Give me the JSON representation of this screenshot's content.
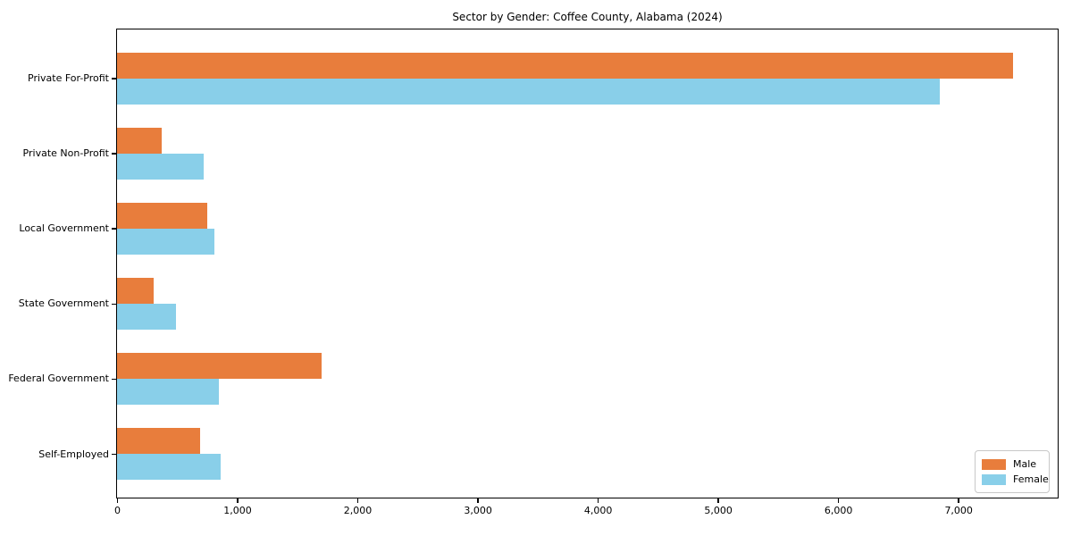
{
  "title": "Sector by Gender: Coffee County, Alabama (2024)",
  "chart_data": {
    "type": "bar",
    "orientation": "horizontal",
    "title": "Sector by Gender: Coffee County, Alabama (2024)",
    "categories": [
      "Private For-Profit",
      "Private Non-Profit",
      "Local Government",
      "State Government",
      "Federal Government",
      "Self-Employed"
    ],
    "series": [
      {
        "name": "Male",
        "color": "#e87d3c",
        "values": [
          7455,
          370,
          750,
          305,
          1700,
          690
        ]
      },
      {
        "name": "Female",
        "color": "#89cfe9",
        "values": [
          6845,
          720,
          810,
          490,
          850,
          860
        ]
      }
    ],
    "xlim": [
      0,
      7820
    ],
    "xticks": [
      0,
      1000,
      2000,
      3000,
      4000,
      5000,
      6000,
      7000
    ],
    "xtick_labels": [
      "0",
      "1,000",
      "2,000",
      "3,000",
      "4,000",
      "5,000",
      "6,000",
      "7,000"
    ],
    "xlabel": "",
    "ylabel": "",
    "grid": false,
    "legend_position": "lower right",
    "background_color": "#ffffff",
    "axis_color": "#000000"
  }
}
